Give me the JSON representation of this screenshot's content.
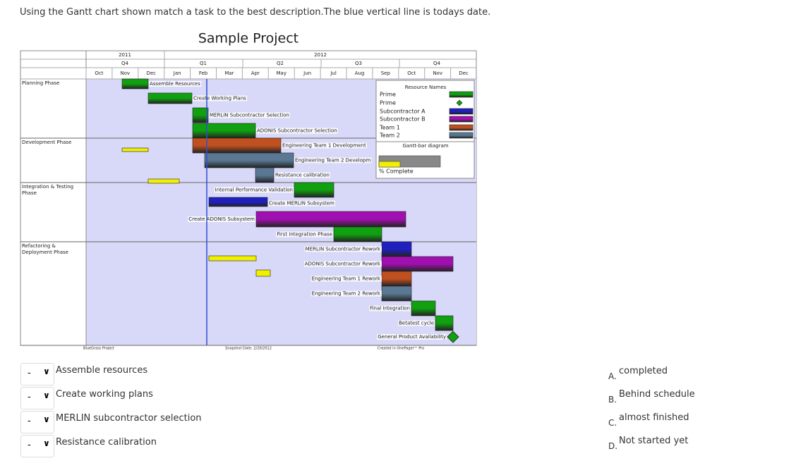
{
  "question": "Using the Gantt chart shown match a task to the best description.The blue vertical line is todays date.",
  "chart": {
    "title": "Sample Project",
    "years": [
      "2011",
      "2012"
    ],
    "quarters": [
      "Q4",
      "Q1",
      "Q2",
      "Q3",
      "Q4"
    ],
    "months": [
      "Oct",
      "Nov",
      "Dec",
      "Jan",
      "Feb",
      "Mar",
      "Apr",
      "May",
      "Jun",
      "Jul",
      "Aug",
      "Sep",
      "Oct",
      "Nov",
      "Dec"
    ],
    "phases": [
      "Planning Phase",
      "Development Phase",
      "Integration & Testing Phase",
      "Refactoring & Deployment Phase"
    ],
    "tasks": [
      "Assemble Resources",
      "Create Working Plans",
      "MERLIN Subcontractor Selection",
      "ADONIS Subcontractor Selection",
      "Engineering Team 1 Development",
      "Engineering Team 2 Developm",
      "Resistance calibration",
      "Internal Performance Validation",
      "Create MERLIN Subsystem",
      "Create ADONIS Subsystem",
      "First Integration Phase",
      "MERLIN Subcontractor Rework",
      "ADONIS Subcontractor Rework",
      "Engineering Team 1 Rework",
      "Engineering Team 2 Rework",
      "Final Integration",
      "Betatest cycle",
      "General Product Availability"
    ],
    "legend": {
      "title": "Resource Names",
      "resources": [
        "Prime",
        "Prime",
        "Subcontractor A",
        "Subcontractor B",
        "Team 1",
        "Team 2"
      ],
      "diagram_title": "Gantt-bar diagram",
      "complete_label": "% Complete"
    },
    "footer": [
      "BlueGrass Project",
      "Snapshot Date: 2/20/2012",
      "Created in OnePager™ Pro"
    ]
  },
  "dropdowns": [
    {
      "placeholder": "-",
      "label": "Assemble resources"
    },
    {
      "placeholder": "-",
      "label": "Create working plans"
    },
    {
      "placeholder": "-",
      "label": "MERLIN subcontractor selection"
    },
    {
      "placeholder": "-",
      "label": "Resistance calibration"
    }
  ],
  "options": [
    {
      "letter": "A.",
      "text": "completed"
    },
    {
      "letter": "B.",
      "text": "Behind schedule"
    },
    {
      "letter": "C.",
      "text": "almost finished"
    },
    {
      "letter": "D.",
      "text": "Not started yet"
    }
  ]
}
